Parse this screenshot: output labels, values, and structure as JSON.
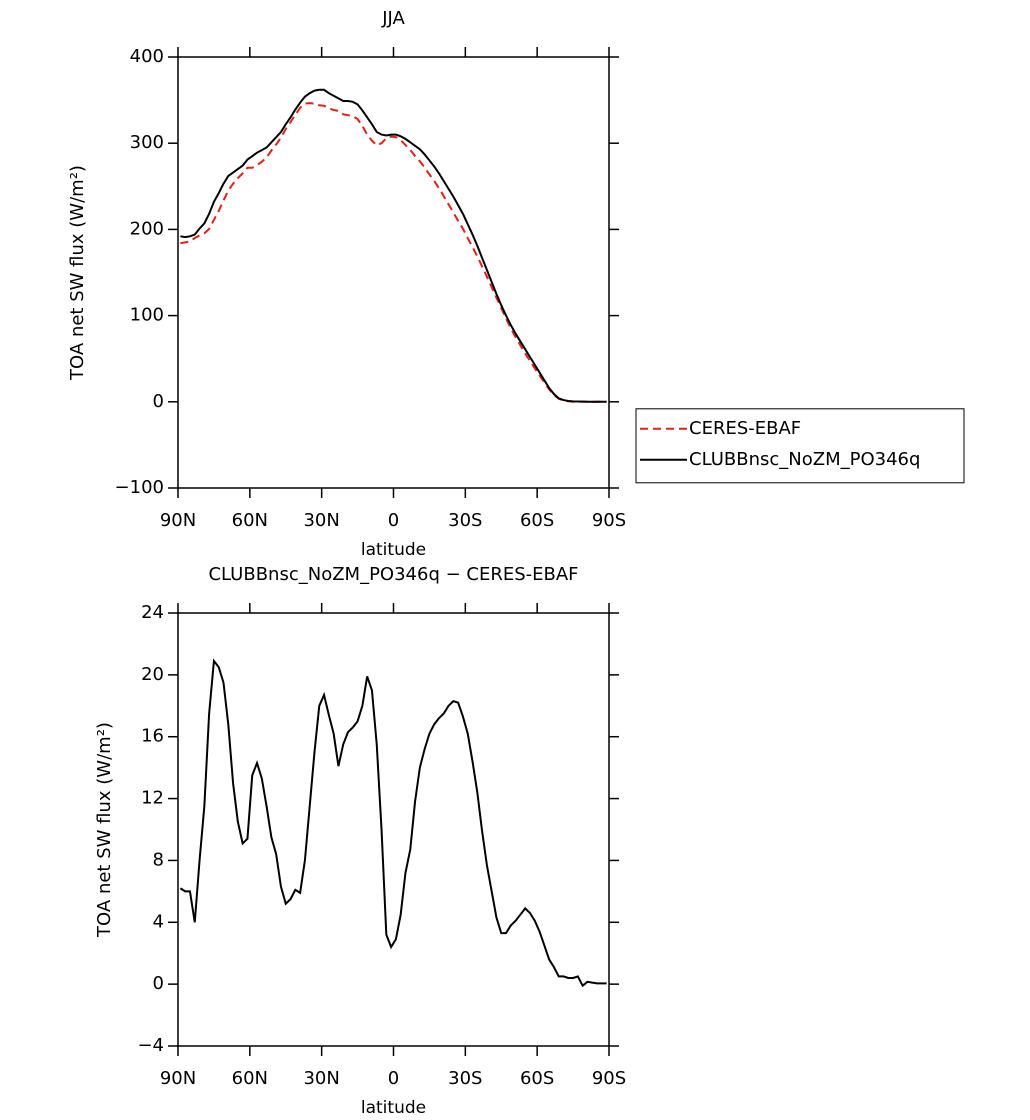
{
  "chart_data": [
    {
      "type": "line",
      "title": "JJA",
      "xlabel": "latitude",
      "ylabel": "TOA net SW flux (W/m²)",
      "x": [
        89,
        87,
        85,
        83,
        81,
        79,
        77,
        75,
        73,
        71,
        69,
        67,
        65,
        63,
        61,
        59,
        57,
        55,
        53,
        51,
        49,
        47,
        45,
        43,
        41,
        39,
        37,
        35,
        33,
        31,
        29,
        27,
        25,
        23,
        21,
        19,
        17,
        15,
        13,
        11,
        9,
        7,
        5,
        3,
        1,
        -1,
        -3,
        -5,
        -7,
        -9,
        -11,
        -13,
        -15,
        -17,
        -19,
        -21,
        -23,
        -25,
        -27,
        -29,
        -31,
        -33,
        -35,
        -37,
        -39,
        -41,
        -43,
        -45,
        -47,
        -49,
        -51,
        -53,
        -55,
        -57,
        -59,
        -61,
        -63,
        -65,
        -67,
        -69,
        -71,
        -73,
        -75,
        -77,
        -79,
        -81,
        -83,
        -85,
        -87,
        -89
      ],
      "series": [
        {
          "name": "CERES-EBAF",
          "color": "#e0201b",
          "dashed": true,
          "values": [
            184,
            185,
            186,
            190,
            193,
            195.5,
            200.5,
            211,
            221.5,
            233.5,
            245,
            253,
            259.5,
            265,
            271.5,
            271.5,
            274.5,
            278.5,
            283.5,
            291.5,
            298.5,
            306.5,
            316.5,
            324.5,
            333,
            341,
            346,
            346.5,
            346,
            344,
            343.5,
            340.5,
            338.5,
            337.5,
            333.5,
            332.5,
            331.5,
            328,
            320,
            310,
            303,
            297.5,
            300,
            305.8,
            307.6,
            307.1,
            303.5,
            297.8,
            292.3,
            285.2,
            279,
            271.8,
            263.8,
            256.2,
            247.8,
            238.5,
            229,
            219.7,
            209.8,
            200.7,
            189.8,
            179.6,
            168.6,
            157.1,
            145.3,
            133,
            120.7,
            108.7,
            96.7,
            85.2,
            74.9,
            65.5,
            56.1,
            47.4,
            38.9,
            30.6,
            22.5,
            14.4,
            7.9,
            3.5,
            1.5,
            0.6,
            0.1,
            0,
            0.3,
            0.1,
            -0.1,
            0,
            0,
            0
          ]
        },
        {
          "name": "CLUBBnsc_NoZM_PO346q",
          "color": "#000000",
          "dashed": false,
          "values": [
            192,
            191,
            192,
            194,
            201,
            207,
            218,
            232,
            242,
            253,
            262,
            266,
            270,
            274,
            281,
            285,
            289,
            292,
            295,
            301,
            307,
            313,
            322,
            330,
            339,
            347,
            354,
            358,
            361,
            362,
            362,
            358,
            355,
            352,
            349,
            349,
            348,
            345,
            338,
            330,
            322,
            313,
            310,
            309,
            310,
            310,
            308,
            305,
            301,
            297,
            293,
            287,
            280,
            273,
            265,
            256,
            247,
            238,
            228,
            218,
            206,
            194,
            181,
            167,
            153,
            139,
            125,
            112,
            100,
            89,
            79,
            70,
            61,
            52,
            43,
            34,
            25,
            16,
            9,
            4,
            2,
            1,
            0.5,
            0.3,
            0.2,
            0,
            0,
            0,
            0,
            0
          ]
        }
      ],
      "xlim": [
        90,
        -90
      ],
      "xticks": [
        {
          "value": 90,
          "label": "90N"
        },
        {
          "value": 60,
          "label": "60N"
        },
        {
          "value": 30,
          "label": "30N"
        },
        0,
        {
          "value": -30,
          "label": "30S"
        },
        {
          "value": -60,
          "label": "60S"
        },
        {
          "value": -90,
          "label": "90S"
        }
      ],
      "ylim": [
        -100,
        400
      ],
      "yticks": [
        {
          "value": -100,
          "label": "−100"
        },
        0,
        100,
        200,
        300,
        400
      ],
      "legend": "right"
    },
    {
      "type": "line",
      "title": "CLUBBnsc_NoZM_PO346q − CERES-EBAF",
      "xlabel": "latitude",
      "ylabel": "TOA net SW flux (W/m²)",
      "x": [
        89,
        87,
        85,
        83,
        81,
        79,
        77,
        75,
        73,
        71,
        69,
        67,
        65,
        63,
        61,
        59,
        57,
        55,
        53,
        51,
        49,
        47,
        45,
        43,
        41,
        39,
        37,
        35,
        33,
        31,
        29,
        27,
        25,
        23,
        21,
        19,
        17,
        15,
        13,
        11,
        9,
        7,
        5,
        3,
        1,
        -1,
        -3,
        -5,
        -7,
        -9,
        -11,
        -13,
        -15,
        -17,
        -19,
        -21,
        -23,
        -25,
        -27,
        -29,
        -31,
        -33,
        -35,
        -37,
        -39,
        -41,
        -43,
        -45,
        -47,
        -49,
        -51,
        -53,
        -55,
        -57,
        -59,
        -61,
        -63,
        -65,
        -67,
        -69,
        -71,
        -73,
        -75,
        -77,
        -79,
        -81,
        -83,
        -85,
        -87,
        -89
      ],
      "series": [
        {
          "color": "#000000",
          "dashed": false,
          "values": [
            6.2,
            6.0,
            6.0,
            4.0,
            8,
            11.5,
            17.5,
            20.9,
            20.5,
            19.5,
            16.8,
            13,
            10.5,
            9.1,
            9.4,
            13.5,
            14.3,
            13.3,
            11.5,
            9.5,
            8.4,
            6.3,
            5.2,
            5.5,
            6.1,
            5.9,
            8,
            11.5,
            15,
            18,
            18.7,
            17.4,
            16.2,
            14.1,
            15.5,
            16.3,
            16.6,
            17.0,
            18,
            19.9,
            19.0,
            15.5,
            10,
            3.2,
            2.4,
            2.9,
            4.5,
            7.2,
            8.7,
            11.8,
            14,
            15.2,
            16.2,
            16.8,
            17.2,
            17.5,
            18.0,
            18.3,
            18.2,
            17.3,
            16.2,
            14.4,
            12.4,
            9.9,
            7.7,
            6,
            4.3,
            3.3,
            3.3,
            3.8,
            4.1,
            4.5,
            4.9,
            4.6,
            4.1,
            3.4,
            2.5,
            1.6,
            1.1,
            0.5,
            0.5,
            0.4,
            0.4,
            0.5,
            -0.1,
            0.15,
            0.1,
            0.05,
            0.05,
            0.05
          ]
        }
      ],
      "xlim": [
        90,
        -90
      ],
      "xticks": [
        {
          "value": 90,
          "label": "90N"
        },
        {
          "value": 60,
          "label": "60N"
        },
        {
          "value": 30,
          "label": "30N"
        },
        0,
        {
          "value": -30,
          "label": "30S"
        },
        {
          "value": -60,
          "label": "60S"
        },
        {
          "value": -90,
          "label": "90S"
        }
      ],
      "ylim": [
        -4,
        24
      ],
      "yticks": [
        {
          "value": -4,
          "label": "−4"
        },
        0,
        4,
        8,
        12,
        16,
        20,
        24
      ]
    }
  ]
}
